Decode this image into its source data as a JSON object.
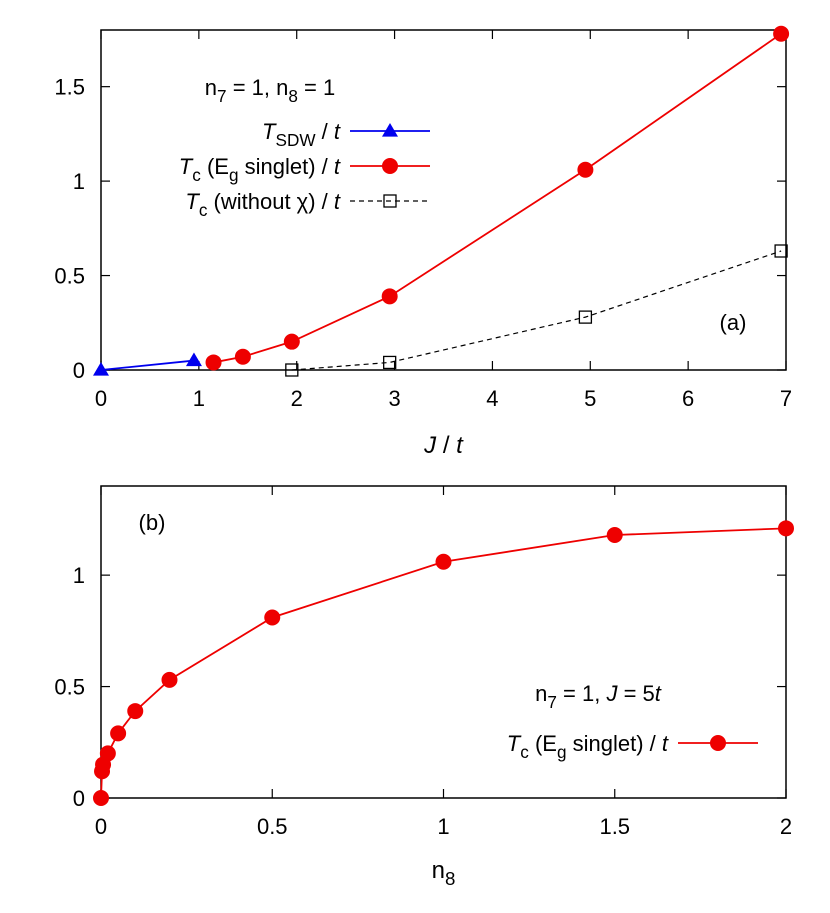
{
  "chart_data": [
    {
      "panel_label": "(a)",
      "type": "line",
      "xlabel": {
        "parts": [
          {
            "t": "J",
            "i": true
          },
          {
            "t": " / "
          },
          {
            "t": "t",
            "i": true
          }
        ]
      },
      "ylabel": "",
      "xlim": [
        0,
        7
      ],
      "ylim": [
        0,
        1.8
      ],
      "xticks": [
        0,
        1,
        2,
        3,
        4,
        5,
        6,
        7
      ],
      "yticks": [
        0,
        0.5,
        1,
        1.5
      ],
      "xtick_labels": [
        "0",
        "1",
        "2",
        "3",
        "4",
        "5",
        "6",
        "7"
      ],
      "ytick_labels": [
        "0",
        "0.5",
        "1",
        "1.5"
      ],
      "grid": false,
      "legend_header": {
        "parts": [
          {
            "t": "n"
          },
          {
            "t": "7",
            "sub": true
          },
          {
            "t": " = 1, n"
          },
          {
            "t": "8",
            "sub": true
          },
          {
            "t": " = 1"
          }
        ]
      },
      "legend_position": "top-left",
      "series": [
        {
          "name": {
            "parts": [
              {
                "t": "T",
                "i": true
              },
              {
                "t": "SDW",
                "sub": true
              },
              {
                "t": " / "
              },
              {
                "t": "t",
                "i": true
              }
            ]
          },
          "color": "#0000ee",
          "marker": "triangle",
          "dash": false,
          "x": [
            0,
            0.95
          ],
          "y": [
            0.0,
            0.05
          ]
        },
        {
          "name": {
            "parts": [
              {
                "t": "T",
                "i": true
              },
              {
                "t": "c",
                "sub": true
              },
              {
                "t": " (E"
              },
              {
                "t": "g",
                "sub": true
              },
              {
                "t": " singlet) / "
              },
              {
                "t": "t",
                "i": true
              }
            ]
          },
          "color": "#ee0000",
          "marker": "circle",
          "dash": false,
          "x": [
            1.15,
            1.45,
            1.95,
            2.95,
            4.95,
            6.95
          ],
          "y": [
            0.04,
            0.07,
            0.15,
            0.39,
            1.06,
            1.78
          ]
        },
        {
          "name": {
            "parts": [
              {
                "t": "T",
                "i": true
              },
              {
                "t": "c",
                "sub": true
              },
              {
                "t": " (without χ) / "
              },
              {
                "t": "t",
                "i": true
              }
            ]
          },
          "color": "#000000",
          "marker": "open-square",
          "dash": true,
          "x": [
            1.95,
            2.95,
            4.95,
            6.95
          ],
          "y": [
            0.0,
            0.04,
            0.28,
            0.63
          ]
        }
      ]
    },
    {
      "panel_label": "(b)",
      "type": "line",
      "xlabel": {
        "parts": [
          {
            "t": "n"
          },
          {
            "t": "8",
            "sub": true
          }
        ]
      },
      "ylabel": "",
      "xlim": [
        0,
        2
      ],
      "ylim": [
        0,
        1.4
      ],
      "xticks": [
        0,
        0.5,
        1,
        1.5,
        2
      ],
      "yticks": [
        0,
        0.5,
        1
      ],
      "xtick_labels": [
        "0",
        "0.5",
        "1",
        "1.5",
        "2"
      ],
      "ytick_labels": [
        "0",
        "0.5",
        "1"
      ],
      "grid": false,
      "legend_header": {
        "parts": [
          {
            "t": "n"
          },
          {
            "t": "7",
            "sub": true
          },
          {
            "t": " = 1, "
          },
          {
            "t": "J",
            "i": true
          },
          {
            "t": " = 5"
          },
          {
            "t": "t",
            "i": true
          }
        ]
      },
      "legend_position": "bottom-right",
      "series": [
        {
          "name": {
            "parts": [
              {
                "t": "T",
                "i": true
              },
              {
                "t": "c",
                "sub": true
              },
              {
                "t": " (E"
              },
              {
                "t": "g",
                "sub": true
              },
              {
                "t": " singlet) / "
              },
              {
                "t": "t",
                "i": true
              }
            ]
          },
          "color": "#ee0000",
          "marker": "circle",
          "dash": false,
          "x": [
            0.0,
            0.003,
            0.006,
            0.02,
            0.05,
            0.1,
            0.2,
            0.5,
            1.0,
            1.5,
            2.0
          ],
          "y": [
            0.0,
            0.12,
            0.15,
            0.2,
            0.29,
            0.39,
            0.53,
            0.81,
            1.06,
            1.18,
            1.21
          ]
        }
      ]
    }
  ]
}
